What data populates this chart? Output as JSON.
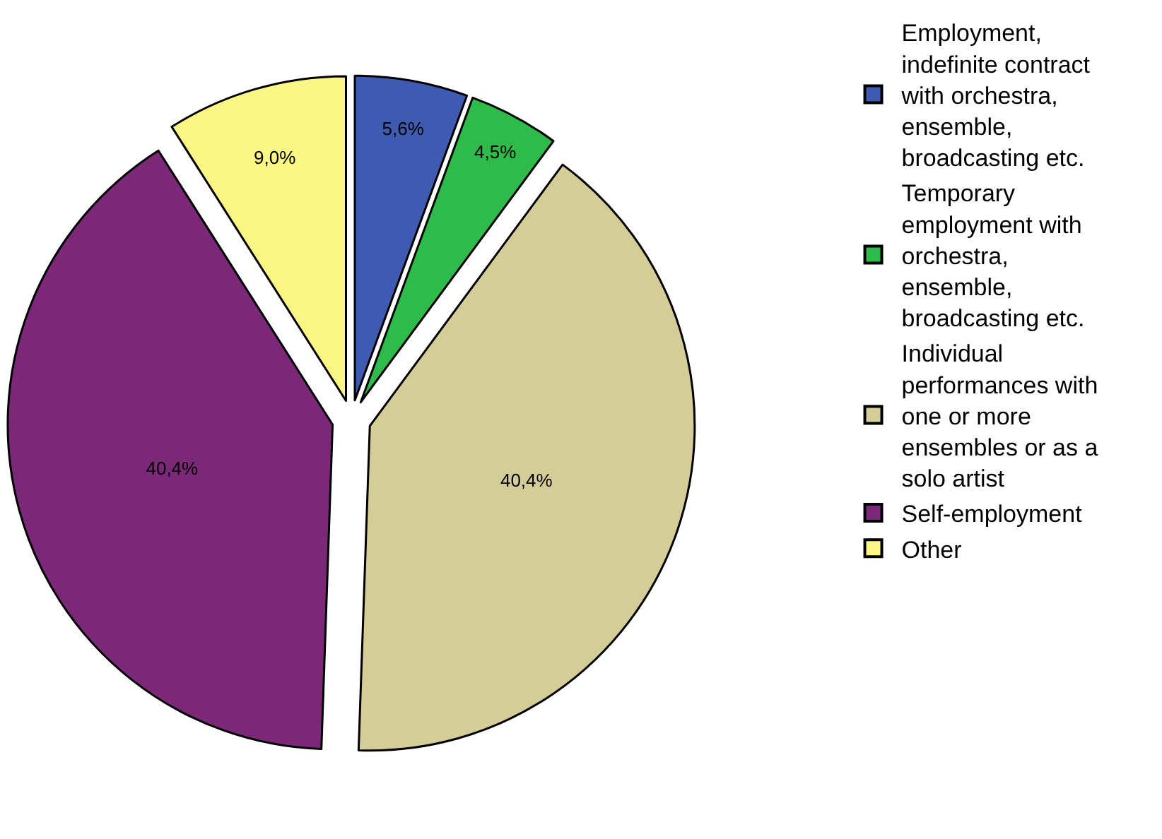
{
  "chart_data": {
    "type": "pie",
    "categories": [
      "Employment, indefinite contract with orchestra, ensemble, broadcasting etc.",
      "Temporary employment with orchestra, ensemble, broadcasting etc.",
      "Individual performances with one or more ensembles or as a solo artist",
      "Self-employment",
      "Other"
    ],
    "values": [
      5.6,
      4.5,
      40.4,
      40.4,
      9.0
    ],
    "value_labels": [
      "5,6%",
      "4,5%",
      "40,4%",
      "40,4%",
      "9,0%"
    ],
    "colors": [
      "#3f5bb1",
      "#2fbb4a",
      "#d4cd98",
      "#7b2878",
      "#fbf784"
    ],
    "legend": "right"
  }
}
